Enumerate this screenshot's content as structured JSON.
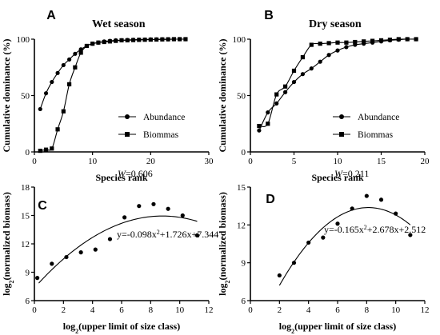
{
  "chart_data": [
    {
      "type": "line",
      "panel_letter": "A",
      "title": "Wet season",
      "xlabel": "Species rank",
      "ylabel": "Cumulative dominance (%)",
      "xlim": [
        0,
        30
      ],
      "ylim": [
        0,
        100
      ],
      "xticks": [
        0,
        10,
        20,
        30
      ],
      "yticks": [
        0,
        50,
        100
      ],
      "legend_position": "center-right",
      "annotation": "W=0.606",
      "series": [
        {
          "name": "Abundance",
          "marker": "circle",
          "x": [
            1,
            2,
            3,
            4,
            5,
            6,
            7,
            8,
            9,
            10,
            11,
            12,
            13,
            14,
            15,
            16,
            17,
            18,
            19,
            20,
            21,
            22,
            23,
            24,
            25,
            26
          ],
          "y": [
            38,
            52,
            62,
            70,
            77,
            82,
            87,
            91,
            94,
            96,
            97,
            98,
            98.5,
            99,
            99,
            99.3,
            99.5,
            99.6,
            99.7,
            99.8,
            99.8,
            99.9,
            99.9,
            100,
            100,
            100
          ]
        },
        {
          "name": "Biommas",
          "marker": "square",
          "x": [
            1,
            2,
            3,
            4,
            5,
            6,
            7,
            8,
            9,
            10,
            11,
            12,
            13,
            14,
            15,
            16,
            17,
            18,
            19,
            20,
            21,
            22,
            23,
            24,
            25,
            26
          ],
          "y": [
            1,
            2,
            3,
            20,
            36,
            60,
            75,
            88,
            94,
            96,
            97,
            97.5,
            98,
            98.5,
            99,
            99,
            99.2,
            99.4,
            99.5,
            99.6,
            99.7,
            99.8,
            99.9,
            100,
            100,
            100
          ]
        }
      ]
    },
    {
      "type": "line",
      "panel_letter": "B",
      "title": "Dry season",
      "xlabel": "Species rank",
      "ylabel": "Cumulative dominance (%)",
      "xlim": [
        0,
        20
      ],
      "ylim": [
        0,
        100
      ],
      "xticks": [
        0,
        5,
        10,
        15,
        20
      ],
      "yticks": [
        0,
        50,
        100
      ],
      "legend_position": "center-right",
      "annotation": "W=0.211",
      "series": [
        {
          "name": "Abundance",
          "marker": "circle",
          "x": [
            1,
            2,
            3,
            4,
            5,
            6,
            7,
            8,
            9,
            10,
            11,
            12,
            13,
            14,
            15,
            16,
            17,
            18,
            19
          ],
          "y": [
            19,
            35,
            43,
            53,
            62,
            69,
            74,
            80,
            86,
            90,
            93,
            95,
            96,
            97,
            98,
            99,
            99.5,
            100,
            100
          ]
        },
        {
          "name": "Biommas",
          "marker": "square",
          "x": [
            1,
            2,
            3,
            4,
            5,
            6,
            7,
            8,
            9,
            10,
            11,
            12,
            13,
            14,
            15,
            16,
            17,
            18,
            19
          ],
          "y": [
            23,
            25,
            51,
            58,
            72,
            84,
            95,
            96,
            96.5,
            97,
            97,
            97.5,
            98,
            98.5,
            99,
            99.5,
            100,
            100,
            100
          ]
        }
      ]
    },
    {
      "type": "scatter",
      "panel_letter": "C",
      "xlabel": "log2(upper limit of size class)",
      "ylabel": "log2(normalized biomass)",
      "xlim": [
        0,
        12
      ],
      "ylim": [
        6,
        18
      ],
      "xticks": [
        0,
        2,
        4,
        6,
        8,
        10,
        12
      ],
      "yticks": [
        6,
        9,
        12,
        15,
        18
      ],
      "fit": {
        "a": -0.098,
        "b": 1.726,
        "c": 7.344,
        "x_range": [
          0.3,
          11.2
        ]
      },
      "annotation": "y=-0.098x²+1.726x+7.344",
      "points": {
        "x": [
          0.2,
          1.2,
          2.2,
          3.2,
          4.2,
          5.2,
          6.2,
          7.2,
          8.2,
          9.2,
          10.2,
          11.2
        ],
        "y": [
          8.4,
          9.9,
          10.6,
          11.1,
          11.4,
          12.5,
          14.8,
          16.0,
          16.2,
          15.7,
          15.0,
          12.9
        ]
      }
    },
    {
      "type": "scatter",
      "panel_letter": "D",
      "xlabel": "log2(upper limit of size class)",
      "ylabel": "log2(normalized biomass)",
      "xlim": [
        0,
        12
      ],
      "ylim": [
        6,
        15
      ],
      "xticks": [
        0,
        2,
        4,
        6,
        8,
        10,
        12
      ],
      "yticks": [
        6,
        9,
        12,
        15
      ],
      "fit": {
        "a": -0.165,
        "b": 2.678,
        "c": 2.512,
        "x_range": [
          2,
          11
        ]
      },
      "annotation": "y=-0.165x²+2.678x+2.512",
      "points": {
        "x": [
          2,
          3,
          4,
          5,
          6,
          7,
          8,
          9,
          10,
          11
        ],
        "y": [
          8.0,
          9.0,
          10.6,
          11.0,
          12.1,
          13.3,
          14.3,
          14.0,
          12.9,
          11.2
        ]
      }
    }
  ]
}
